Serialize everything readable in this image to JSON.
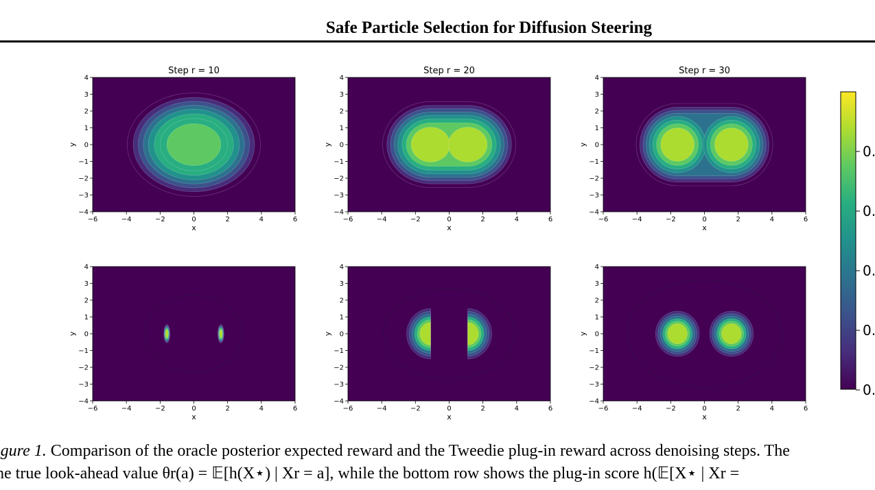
{
  "header": {
    "title": "Safe Particle Selection for Diffusion Steering"
  },
  "figure": {
    "panels": [
      {
        "row": "top",
        "title": "Step r = 10",
        "step": 10,
        "peaks_x": [
          0.0
        ],
        "peak_value": 0.85
      },
      {
        "row": "top",
        "title": "Step r = 20",
        "step": 20,
        "peaks_x": [
          -1.1,
          1.1
        ],
        "peak_value": 0.93
      },
      {
        "row": "top",
        "title": "Step r = 30",
        "step": 30,
        "peaks_x": [
          -1.6,
          1.6
        ],
        "peak_value": 0.97
      },
      {
        "row": "bottom",
        "title": "",
        "step": 10,
        "peaks_x": [
          -1.6,
          1.6
        ],
        "peak_value": 0.95
      },
      {
        "row": "bottom",
        "title": "",
        "step": 20,
        "peaks_x": [
          -1.5,
          1.5
        ],
        "peak_value": 0.97
      },
      {
        "row": "bottom",
        "title": "",
        "step": 30,
        "peaks_x": [
          -1.6,
          1.6
        ],
        "peak_value": 0.98
      }
    ],
    "xlabel": "x",
    "ylabel": "y",
    "xticks": [
      "−6",
      "−4",
      "−2",
      "0",
      "2",
      "4",
      "6"
    ],
    "yticks": [
      "4",
      "3",
      "2",
      "1",
      "0",
      "−1",
      "−2",
      "−3",
      "−4"
    ],
    "xlim": [
      -6,
      6
    ],
    "ylim": [
      -4,
      4
    ],
    "colormap": "viridis",
    "colorbar": {
      "tick_labels": [
        "0.",
        "0.",
        "0.",
        "0.",
        "0."
      ]
    }
  },
  "caption": {
    "label": "igure 1.",
    "line1": "Comparison of the oracle posterior expected reward and the Tweedie plug-in reward across denoising steps. The",
    "line2": "he true look-ahead value θr(a) = 𝔼[h(X⋆) | Xr = a], while the bottom row shows the plug-in score h(𝔼[X⋆ | Xr ="
  }
}
